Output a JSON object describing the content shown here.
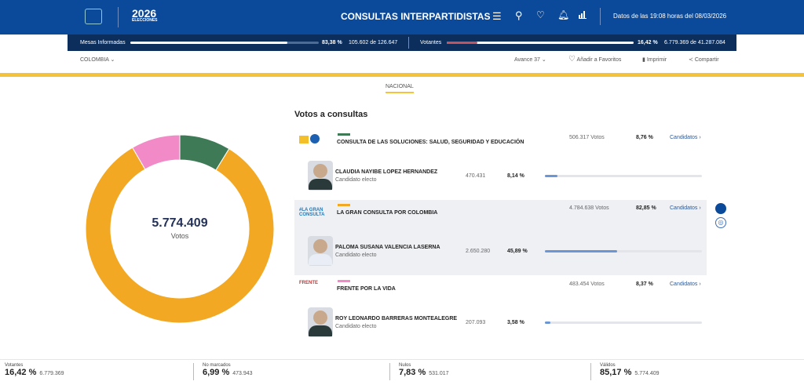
{
  "header": {
    "logo_text": "2026",
    "logo_sub": "ELECCIONES",
    "title": "CONSULTAS INTERPARTIDISTAS",
    "timestamp": "Datos de las 19:08 horas del 08/03/2026"
  },
  "subbar": {
    "mesas_label": "Mesas Informadas",
    "mesas_pct": "83,38 %",
    "mesas_fraction": 0.8338,
    "mesas_count": "105.602 de 126.647",
    "votantes_label": "Votantes",
    "votantes_pct": "16,42 %",
    "votantes_fraction": 0.1642,
    "votantes_count": "6.779.369 de 41.287.084"
  },
  "nav": {
    "region": "COLOMBIA",
    "avance": "Avance 37",
    "favoritos": "Añadir a Favoritos",
    "imprimir": "Imprimir",
    "compartir": "Compartir",
    "tab": "NACIONAL"
  },
  "donut": {
    "total": "5.774.409",
    "label": "Votos",
    "colors": [
      "#3f7a57",
      "#f3a823",
      "#f28ac8"
    ],
    "values": [
      8.76,
      82.85,
      8.37
    ]
  },
  "section_title": "Votos a consultas",
  "consultas": [
    {
      "name": "CONSULTA DE LAS SOLUCIONES: SALUD, SEGURIDAD Y EDUCACIÓN",
      "votes": "506.317 Votos",
      "pct": "8,76 %",
      "link": "Candidatos ›",
      "color": "#3f7a57",
      "candidate": {
        "name": "CLAUDIA NAYIBE LOPEZ HERNANDEZ",
        "status": "Candidato electo",
        "votes": "470.431",
        "pct": "8,14 %",
        "fraction": 0.0814
      }
    },
    {
      "name": "LA GRAN CONSULTA POR COLOMBIA",
      "logo": "#LA GRAN CONSULTA",
      "votes": "4.784.638 Votos",
      "pct": "82,85 %",
      "link": "Candidatos ›",
      "color": "#f3a823",
      "candidate": {
        "name": "PALOMA SUSANA VALENCIA LASERNA",
        "status": "Candidato electo",
        "votes": "2.650.280",
        "pct": "45,89 %",
        "fraction": 0.4589
      }
    },
    {
      "name": "FRENTE POR LA VIDA",
      "logo": "FRENTE",
      "votes": "483.454 Votos",
      "pct": "8,37 %",
      "link": "Candidatos ›",
      "color": "#f28ac8",
      "candidate": {
        "name": "ROY LEONARDO BARRERAS MONTEALEGRE",
        "status": "Candidato electo",
        "votes": "207.093",
        "pct": "3,58 %",
        "fraction": 0.0358
      }
    }
  ],
  "footer": [
    {
      "label": "Votantes",
      "pct": "16,42 %",
      "count": "6.779.369"
    },
    {
      "label": "No marcados",
      "pct": "6,99 %",
      "count": "473.943"
    },
    {
      "label": "Nulos",
      "pct": "7,83 %",
      "count": "531.017"
    },
    {
      "label": "Válidos",
      "pct": "85,17 %",
      "count": "5.774.409"
    }
  ]
}
